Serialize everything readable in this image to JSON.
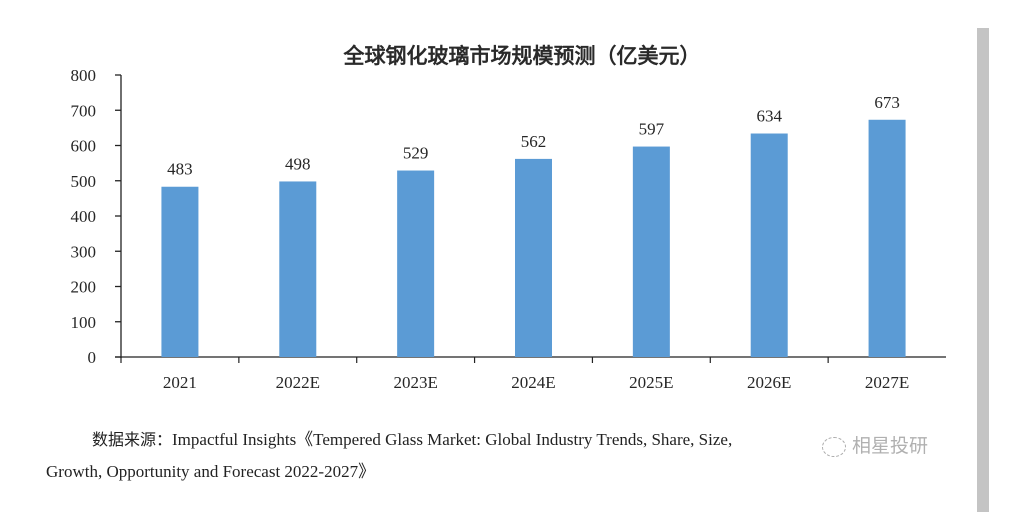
{
  "chart_data": {
    "type": "bar",
    "title": "全球钢化玻璃市场规模预测（亿美元）",
    "categories": [
      "2021",
      "2022E",
      "2023E",
      "2024E",
      "2025E",
      "2026E",
      "2027E"
    ],
    "values": [
      483,
      498,
      529,
      562,
      597,
      634,
      673
    ],
    "data_labels": [
      "483",
      "498",
      "529",
      "562",
      "597",
      "634",
      "673"
    ],
    "xlabel": "",
    "ylabel": "",
    "ylim": [
      0,
      800
    ],
    "yticks": [
      0,
      100,
      200,
      300,
      400,
      500,
      600,
      700,
      800
    ],
    "ytick_labels": [
      "0",
      "100",
      "200",
      "300",
      "400",
      "500",
      "600",
      "700",
      "800"
    ],
    "grid": false,
    "legend": null,
    "bar_color": "#5B9BD5"
  },
  "source": {
    "prefix": "数据来源：",
    "line1": "Impactful Insights《Tempered Glass Market: Global Industry Trends, Share, Size,",
    "line2": "Growth, Opportunity and Forecast 2022-2027》"
  },
  "watermark": {
    "icon": "wechat-icon",
    "text": "相星投研"
  }
}
